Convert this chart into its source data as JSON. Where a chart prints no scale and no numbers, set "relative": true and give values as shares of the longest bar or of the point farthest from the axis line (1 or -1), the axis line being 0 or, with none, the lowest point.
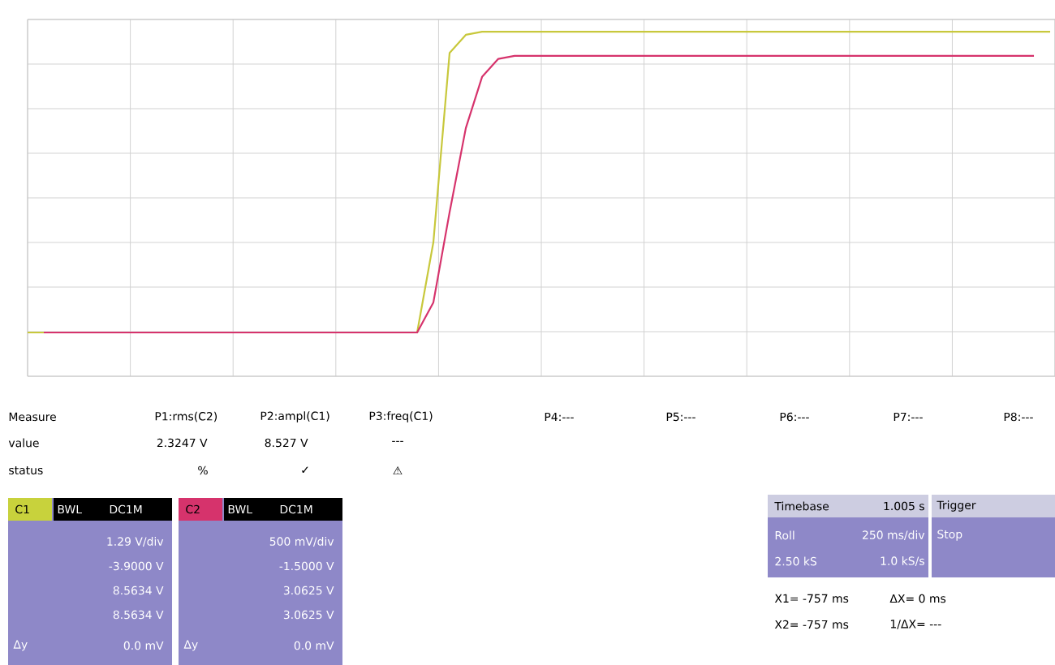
{
  "chart_data": {
    "type": "line",
    "relative": true,
    "grid": true,
    "categories": [
      null,
      null,
      null,
      null,
      null,
      null,
      null,
      null,
      null,
      null,
      null,
      null,
      null,
      null,
      null,
      null,
      null,
      null,
      null,
      null,
      null,
      null,
      null,
      null,
      null,
      null,
      null,
      null,
      null,
      null,
      null,
      null,
      null,
      null,
      null,
      null,
      null,
      null,
      null,
      null,
      null,
      null,
      null,
      null,
      null,
      null,
      null,
      null,
      null,
      null,
      null,
      null,
      null,
      null,
      null,
      null,
      null,
      null,
      null,
      null,
      null,
      null,
      null,
      null
    ],
    "series": [
      {
        "color": "#c8c83c",
        "values": [
          0,
          0,
          0,
          0,
          0,
          0,
          0,
          0,
          0,
          0,
          0,
          0,
          0,
          0,
          0,
          0,
          0,
          0,
          0,
          0,
          0,
          0,
          0,
          0,
          0,
          0.3,
          0.93,
          0.99,
          1,
          1,
          1,
          1,
          1,
          1,
          1,
          1,
          1,
          1,
          1,
          1,
          1,
          1,
          1,
          1,
          1,
          1,
          1,
          1,
          1,
          1,
          1,
          1,
          1,
          1,
          1,
          1,
          1,
          1,
          1,
          1,
          1,
          1,
          1,
          1
        ]
      },
      {
        "color": "#d6336c",
        "values": [
          null,
          0,
          0,
          0,
          0,
          0,
          0,
          0,
          0,
          0,
          0,
          0,
          0,
          0,
          0,
          0,
          0,
          0,
          0,
          0,
          0,
          0,
          0,
          0,
          0,
          0.1,
          0.4,
          0.68,
          0.85,
          0.91,
          0.92,
          0.92,
          0.92,
          0.92,
          0.92,
          0.92,
          0.92,
          0.92,
          0.92,
          0.92,
          0.92,
          0.92,
          0.92,
          0.92,
          0.92,
          0.92,
          0.92,
          0.92,
          0.92,
          0.92,
          0.92,
          0.92,
          0.92,
          0.92,
          0.92,
          0.92,
          0.92,
          0.92,
          0.92,
          0.92,
          0.92,
          0.92,
          0.92,
          null
        ]
      }
    ],
    "annotations": [
      "Measure",
      "P1:rms(C2)",
      "P2:ampl(C1)",
      "P3:freq(C1)",
      "P4:---",
      "P5:---",
      "P6:---",
      "P7:---",
      "P8:---",
      "value",
      "2.3247 V",
      "8.527 V",
      "---",
      "status",
      "%",
      "✓",
      "⚠",
      "C1",
      "BWL",
      "DC1M",
      "1.29 V/div",
      "-3.9000 V",
      "8.5634 V",
      "8.5634 V",
      "0.0 mV",
      "Δy",
      "C2",
      "BWL",
      "DC1M",
      "500 mV/div",
      "-1.5000 V",
      "3.0625 V",
      "3.0625 V",
      "0.0 mV",
      "Δy",
      "Timebase",
      "1.005 s",
      "Trigger",
      "Roll",
      "250 ms/div",
      "Stop",
      "2.50 kS",
      "1.0 kS/s",
      "X1= -757 ms",
      "ΔX= 0 ms",
      "X2= -757 ms",
      "1/ΔX= ---"
    ]
  }
}
